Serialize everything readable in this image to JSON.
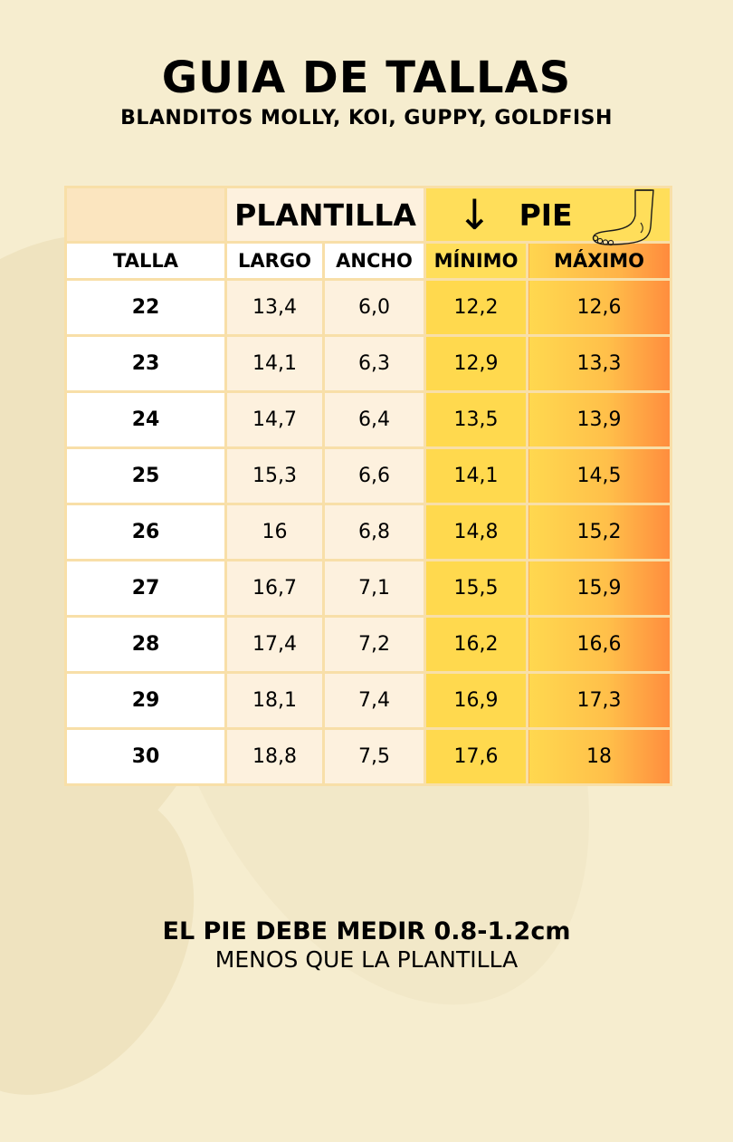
{
  "header": {
    "title": "GUIA DE TALLAS",
    "subtitle": "BLANDITOS MOLLY, KOI, GUPPY, GOLDFISH"
  },
  "table": {
    "group_plantilla": "PLANTILLA",
    "group_pie": "PIE",
    "arrow_glyph": "↓",
    "columns": {
      "talla": "TALLA",
      "largo": "LARGO",
      "ancho": "ANCHO",
      "minimo": "MÍNIMO",
      "maximo": "MÁXIMO"
    },
    "rows": [
      {
        "talla": "22",
        "largo": "13,4",
        "ancho": "6,0",
        "minimo": "12,2",
        "maximo": "12,6"
      },
      {
        "talla": "23",
        "largo": "14,1",
        "ancho": "6,3",
        "minimo": "12,9",
        "maximo": "13,3"
      },
      {
        "talla": "24",
        "largo": "14,7",
        "ancho": "6,4",
        "minimo": "13,5",
        "maximo": "13,9"
      },
      {
        "talla": "25",
        "largo": "15,3",
        "ancho": "6,6",
        "minimo": "14,1",
        "maximo": "14,5"
      },
      {
        "talla": "26",
        "largo": "16",
        "ancho": "6,8",
        "minimo": "14,8",
        "maximo": "15,2"
      },
      {
        "talla": "27",
        "largo": "16,7",
        "ancho": "7,1",
        "minimo": "15,5",
        "maximo": "15,9"
      },
      {
        "talla": "28",
        "largo": "17,4",
        "ancho": "7,2",
        "minimo": "16,2",
        "maximo": "16,6"
      },
      {
        "talla": "29",
        "largo": "18,1",
        "ancho": "7,4",
        "minimo": "16,9",
        "maximo": "17,3"
      },
      {
        "talla": "30",
        "largo": "18,8",
        "ancho": "7,5",
        "minimo": "17,6",
        "maximo": "18"
      }
    ]
  },
  "note": {
    "line1": "EL PIE DEBE MEDIR 0.8-1.2cm",
    "line2": "MENOS QUE LA PLANTILLA"
  },
  "icons": {
    "foot": "foot-icon",
    "arrow": "arrow-down-icon"
  },
  "colors": {
    "background": "#f6edcf",
    "plantilla_cell": "#fdf1de",
    "pie_yellow": "#ffd94e",
    "pie_orange": "#ff8d3e",
    "grid_line": "#f8dfa8"
  }
}
